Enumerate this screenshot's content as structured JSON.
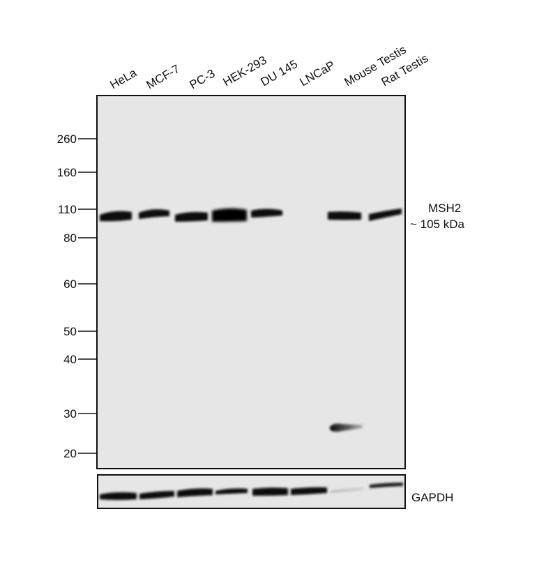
{
  "lanes": [
    "HeLa",
    "MCF-7",
    "PC-3",
    "HEK-293",
    "DU 145",
    "LNCaP",
    "Mouse Testis",
    "Rat Testis"
  ],
  "markers": [
    "260",
    "160",
    "110",
    "80",
    "60",
    "50",
    "40",
    "30",
    "20"
  ],
  "target": {
    "name": "MSH2",
    "size": "~ 105 kDa"
  },
  "loading_control": "GAPDH",
  "colors": {
    "membrane": "#e6e6e6",
    "band": "#0b0b0b",
    "frame": "#111111"
  }
}
